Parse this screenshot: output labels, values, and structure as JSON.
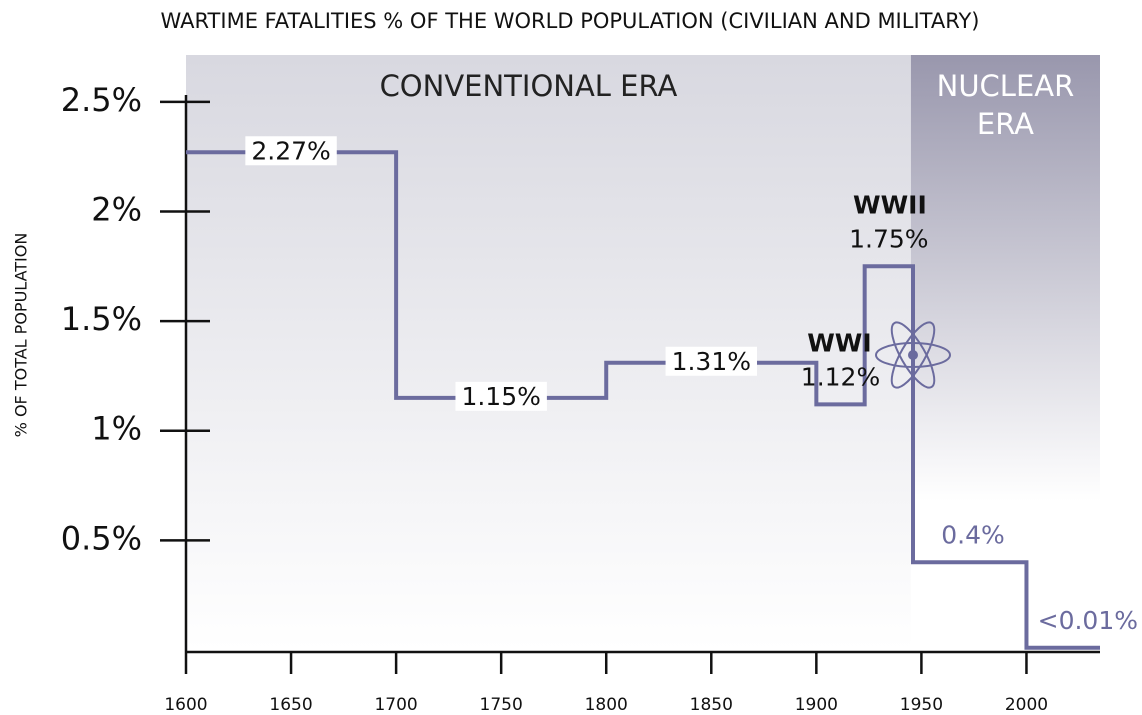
{
  "chart_data": {
    "type": "step",
    "title": "WARTIME FATALITIES % OF THE WORLD POPULATION (CIVILIAN AND MILITARY)",
    "y_label": "% OF TOTAL POPULATION",
    "xlim": [
      1600,
      2035
    ],
    "xticks": [
      1600,
      1650,
      1700,
      1750,
      1800,
      1850,
      1900,
      1950,
      2000
    ],
    "ylim": [
      0,
      2.7
    ],
    "yticks": [
      {
        "value": 0.5,
        "label": "0.5%"
      },
      {
        "value": 1,
        "label": "1%"
      },
      {
        "value": 1.5,
        "label": "1.5%"
      },
      {
        "value": 2,
        "label": "2%"
      },
      {
        "value": 2.5,
        "label": "2.5%"
      }
    ],
    "series": [
      {
        "color": "#6b6b9e",
        "x": [
          1600,
          1700,
          1800,
          1900,
          1923,
          1946,
          2000
        ],
        "values": [
          2.27,
          1.15,
          1.31,
          1.12,
          1.75,
          0.4,
          0.01
        ],
        "value_labels": [
          "2.27%",
          "1.15%",
          "1.31%",
          "1.12%",
          "1.75%",
          "0.4%",
          "<0.01%"
        ]
      }
    ],
    "annotations": [
      {
        "text": "WWI",
        "x": 1911
      },
      {
        "text": "WWII",
        "x": 1935
      }
    ],
    "eras": [
      {
        "label": [
          "CONVENTIONAL ERA"
        ],
        "start": 1600,
        "end": 1945
      },
      {
        "label": [
          "NUCLEAR",
          "ERA"
        ],
        "start": 1945,
        "end": 2035
      }
    ]
  }
}
